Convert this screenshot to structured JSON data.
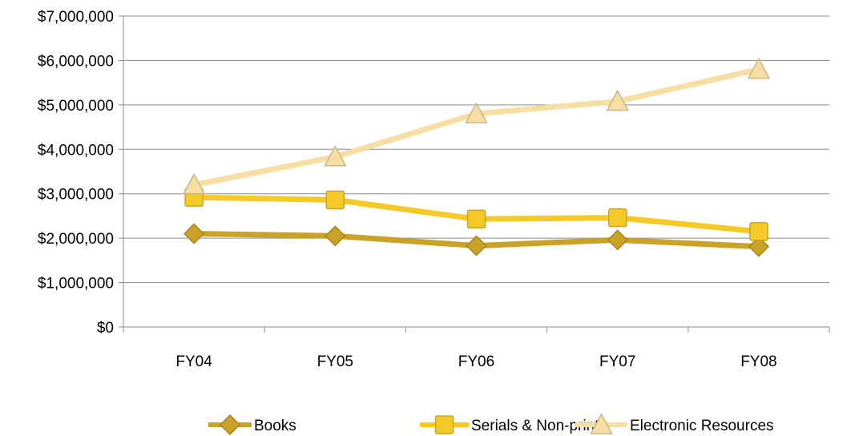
{
  "chart_data": {
    "type": "line",
    "title": "",
    "xlabel": "",
    "ylabel": "",
    "categories": [
      "FY04",
      "FY05",
      "FY06",
      "FY07",
      "FY08"
    ],
    "ylim": [
      0,
      7000000
    ],
    "yticks": [
      0,
      1000000,
      2000000,
      3000000,
      4000000,
      5000000,
      6000000,
      7000000
    ],
    "ytick_labels": [
      "$0",
      "$1,000,000",
      "$2,000,000",
      "$3,000,000",
      "$4,000,000",
      "$5,000,000",
      "$6,000,000",
      "$7,000,000"
    ],
    "grid": true,
    "legend_position": "bottom",
    "series": [
      {
        "name": "Books",
        "values": [
          2100000,
          2050000,
          1830000,
          1960000,
          1810000
        ],
        "color": "#C9A227",
        "marker": "diamond"
      },
      {
        "name": "Serials & Non-print",
        "values": [
          2920000,
          2860000,
          2430000,
          2460000,
          2150000
        ],
        "color": "#F5C928",
        "marker": "square"
      },
      {
        "name": "Electronic Resources",
        "values": [
          3200000,
          3830000,
          4800000,
          5080000,
          5800000
        ],
        "color": "#F7DEA2",
        "marker": "triangle"
      }
    ]
  }
}
